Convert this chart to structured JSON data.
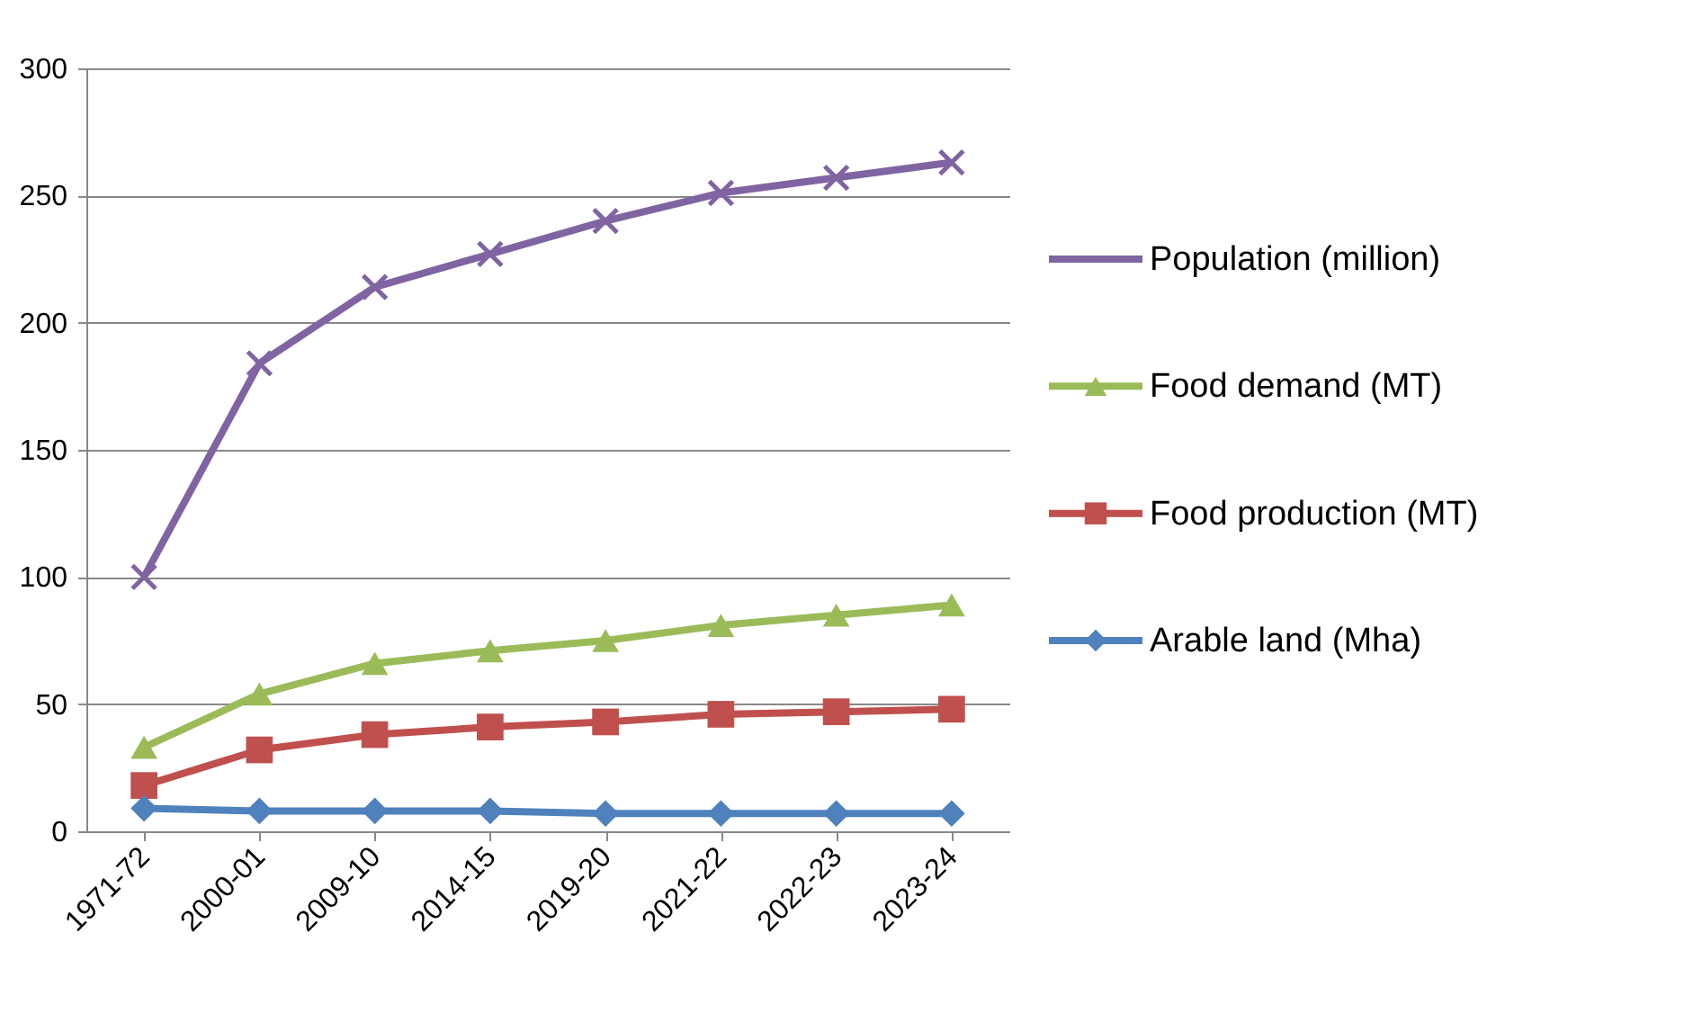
{
  "chart_data": {
    "type": "line",
    "categories": [
      "1971-72",
      "2000-01",
      "2009-10",
      "2014-15",
      "2019-20",
      "2021-22",
      "2022-23",
      "2023-24"
    ],
    "series": [
      {
        "name": "Population (million)",
        "color": "#8064a2",
        "marker": "cross",
        "values": [
          100,
          184,
          214,
          227,
          240,
          251,
          257,
          263
        ]
      },
      {
        "name": "Food demand (MT)",
        "color": "#9bbb59",
        "marker": "triangle",
        "values": [
          33,
          54,
          66,
          71,
          75,
          81,
          85,
          89
        ]
      },
      {
        "name": "Food production (MT)",
        "color": "#c0504d",
        "marker": "square",
        "values": [
          18,
          32,
          38,
          41,
          43,
          46,
          47,
          48
        ]
      },
      {
        "name": "Arable land (Mha)",
        "color": "#4f81bd",
        "marker": "diamond",
        "values": [
          9,
          8,
          8,
          8,
          7,
          7,
          7,
          7
        ]
      }
    ],
    "ylim": [
      0,
      300
    ],
    "yticks": [
      0,
      50,
      100,
      150,
      200,
      250,
      300
    ],
    "grid": "y",
    "legend": "right"
  }
}
